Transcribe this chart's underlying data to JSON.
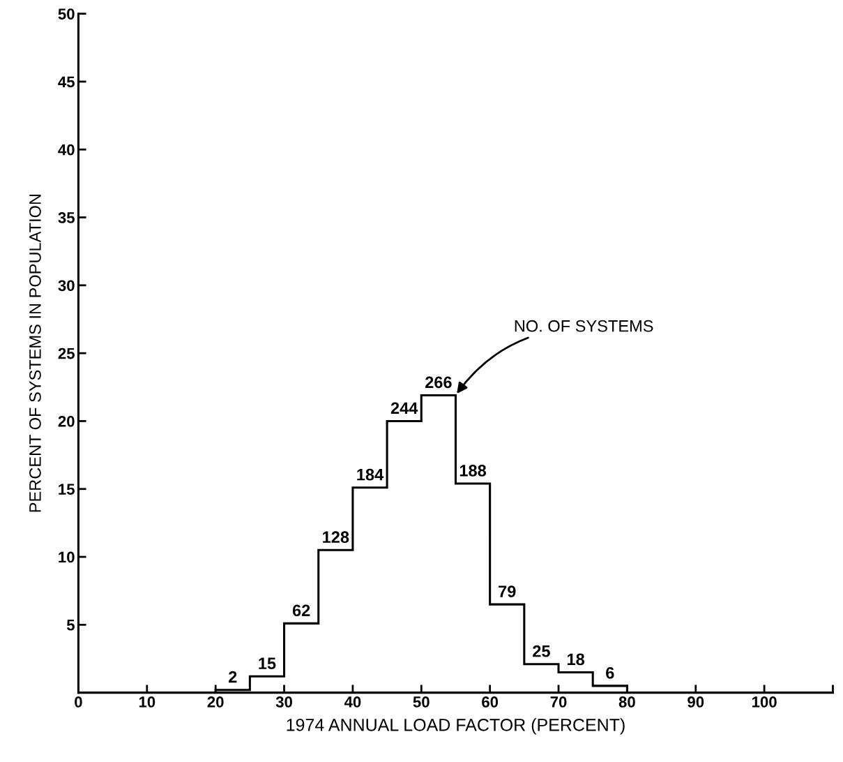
{
  "chart_data": {
    "type": "histogram",
    "xlabel": "1974 ANNUAL LOAD FACTOR (PERCENT)",
    "ylabel": "PERCENT OF SYSTEMS IN POPULATION",
    "bins": [
      20,
      25,
      30,
      35,
      40,
      45,
      50,
      55,
      60,
      65,
      70,
      75,
      80
    ],
    "values": [
      0.2,
      1.2,
      5.1,
      10.5,
      15.1,
      20.0,
      21.9,
      15.4,
      6.5,
      2.1,
      1.5,
      0.5
    ],
    "color": "#000000",
    "xlim": [
      0,
      110
    ],
    "xticks": [
      0,
      10,
      20,
      30,
      40,
      50,
      60,
      70,
      80,
      90,
      100,
      {
        "value": 110,
        "label": null
      }
    ],
    "ylim": [
      0,
      50
    ],
    "yticks": [
      5,
      10,
      15,
      20,
      25,
      30,
      35,
      40,
      45,
      50
    ],
    "annotations": [
      {
        "text": "2",
        "x": 22.5,
        "y": 0.2
      },
      {
        "text": "15",
        "x": 27.5,
        "y": 1.2
      },
      {
        "text": "62",
        "x": 32.5,
        "y": 5.1
      },
      {
        "text": "128",
        "x": 37.5,
        "y": 10.5
      },
      {
        "text": "184",
        "x": 42.5,
        "y": 15.1
      },
      {
        "text": "244",
        "x": 47.5,
        "y": 20.0
      },
      {
        "text": "266",
        "x": 52.5,
        "y": 21.9
      },
      {
        "text": "188",
        "x": 57.5,
        "y": 15.4
      },
      {
        "text": "79",
        "x": 62.5,
        "y": 6.5
      },
      {
        "text": "25",
        "x": 67.5,
        "y": 2.1
      },
      {
        "text": "18",
        "x": 72.5,
        "y": 1.5
      },
      {
        "text": "6",
        "x": 77.5,
        "y": 0.5
      },
      {
        "text": "NO. OF SYSTEMS",
        "x": 55,
        "y": 21.9
      }
    ],
    "grid": false,
    "legend": false
  }
}
